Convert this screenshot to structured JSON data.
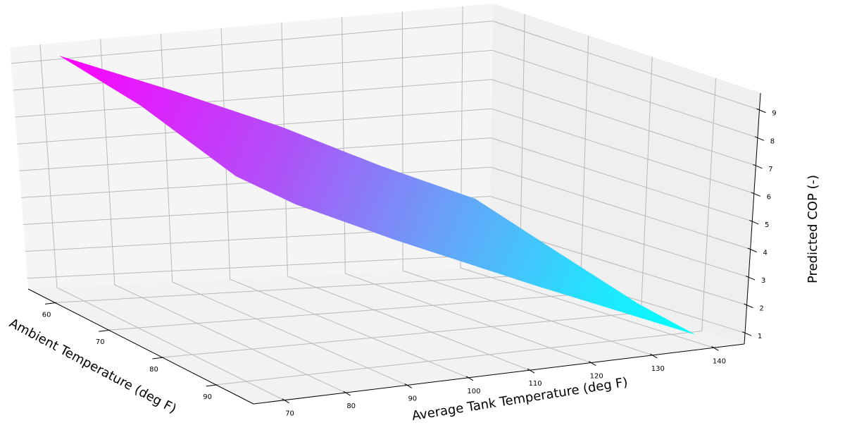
{
  "chart_data": {
    "type": "surface3d",
    "title": "",
    "colormap": "cool",
    "colormap_stops": [
      "#ff00ff",
      "#00ffff"
    ],
    "x_axis": {
      "label": "Average Tank Temperature (deg F)",
      "ticks": [
        70,
        80,
        90,
        100,
        110,
        120,
        130,
        140
      ],
      "range": [
        65,
        145
      ]
    },
    "y_axis": {
      "label": "Ambient Temperature (deg F)",
      "ticks": [
        60,
        70,
        80,
        90
      ],
      "range": [
        55,
        97
      ]
    },
    "z_axis": {
      "label": "Predicted COP (-)",
      "ticks": [
        1,
        2,
        3,
        4,
        5,
        6,
        7,
        8,
        9
      ],
      "range": [
        0.6,
        9.6
      ]
    },
    "surface_corners": [
      {
        "tank_temp": 70,
        "ambient_temp": 95,
        "cop": 9.3
      },
      {
        "tank_temp": 70,
        "ambient_temp": 55,
        "cop": 6.1
      },
      {
        "tank_temp": 140,
        "ambient_temp": 55,
        "cop": 0.9
      },
      {
        "tank_temp": 140,
        "ambient_temp": 95,
        "cop": 4.6
      }
    ],
    "grid": true,
    "legend": "none",
    "pane_color": "#f2f2f2",
    "grid_color": "#b0b0b0"
  }
}
